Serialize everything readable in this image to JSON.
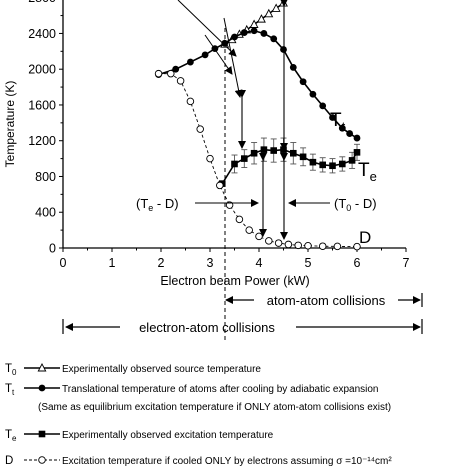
{
  "chart_data": {
    "type": "line",
    "ylabel": "Temperature (K)",
    "xlabel": "Electron beam Power (kW)",
    "xlim": [
      0,
      7
    ],
    "ylim": [
      0,
      2800
    ],
    "x_ticks": [
      "0",
      "1",
      "2",
      "3",
      "4",
      "5",
      "6",
      "7"
    ],
    "y_ticks": [
      "0",
      "400",
      "800",
      "1200",
      "1600",
      "2000",
      "2400"
    ],
    "y_top_partial_label": "2800",
    "grid": false,
    "series": [
      {
        "key": "T0",
        "marker": "open-triangle",
        "line": "solid",
        "x": [
          3.3,
          3.45,
          3.6,
          3.75,
          3.9,
          4.05,
          4.2,
          4.35,
          4.5
        ],
        "y": [
          2280,
          2330,
          2390,
          2440,
          2500,
          2560,
          2620,
          2680,
          2740
        ]
      },
      {
        "key": "Tt",
        "marker": "filled-circle",
        "line": "solid",
        "x": [
          1.95,
          2.3,
          2.6,
          2.9,
          3.1,
          3.3,
          3.5,
          3.7,
          3.9,
          4.1,
          4.3,
          4.5,
          4.7,
          4.9,
          5.1,
          5.3,
          5.5,
          5.7,
          5.85,
          6.0
        ],
        "y": [
          1940,
          2000,
          2080,
          2160,
          2230,
          2290,
          2360,
          2410,
          2430,
          2400,
          2340,
          2220,
          2020,
          1860,
          1720,
          1590,
          1460,
          1340,
          1280,
          1230
        ]
      },
      {
        "key": "Te",
        "marker": "filled-square",
        "line": "solid",
        "x": [
          3.25,
          3.5,
          3.7,
          3.9,
          4.1,
          4.3,
          4.5,
          4.7,
          4.9,
          5.1,
          5.3,
          5.5,
          5.7,
          5.9,
          6.0
        ],
        "y": [
          720,
          940,
          1000,
          1060,
          1100,
          1090,
          1100,
          1060,
          1020,
          960,
          930,
          920,
          940,
          980,
          1070
        ],
        "error": [
          0,
          100,
          100,
          120,
          130,
          130,
          130,
          120,
          100,
          90,
          80,
          80,
          80,
          90,
          90
        ]
      },
      {
        "key": "D",
        "marker": "open-circle",
        "line": "dashed",
        "x": [
          1.95,
          2.2,
          2.4,
          2.6,
          2.8,
          3.0,
          3.2,
          3.4,
          3.6,
          3.8,
          4.0,
          4.2,
          4.4,
          4.6,
          4.8,
          5.0,
          5.3,
          5.6,
          6.0
        ],
        "y": [
          1950,
          1950,
          1870,
          1640,
          1330,
          1000,
          700,
          480,
          320,
          200,
          130,
          80,
          55,
          40,
          30,
          25,
          20,
          18,
          15
        ]
      }
    ],
    "curve_labels": {
      "Tt": {
        "main": "T",
        "sub": "t"
      },
      "Te": {
        "main": "T",
        "sub": "e"
      },
      "D": {
        "main": "D",
        "sub": ""
      }
    },
    "annotations": {
      "te_minus_d": {
        "open": "(T",
        "sub": "e",
        "close": " - D)"
      },
      "t0_minus_d": {
        "open": "(T",
        "sub": "0",
        "close": " - D)"
      },
      "atom_atom": "atom-atom collisions",
      "electron_atom": "electron-atom collisions"
    },
    "legend": [
      {
        "key": "T0",
        "sym_main": "T",
        "sym_sub": "0",
        "text": "Experimentally observed source temperature"
      },
      {
        "key": "Tt",
        "sym_main": "T",
        "sym_sub": "t",
        "text": "Translational temperature of atoms after cooling by adiabatic expansion"
      },
      {
        "key": "Tt_note",
        "sym_main": "",
        "sym_sub": "",
        "text": "(Same as equilibrium excitation temperature if  ONLY atom-atom collisions exist)"
      },
      {
        "key": "Te",
        "sym_main": "T",
        "sym_sub": "e",
        "text": "Experimentally observed excitation temperature"
      },
      {
        "key": "D",
        "sym_main": "D",
        "sym_sub": "",
        "text": "Excitation temperature if cooled ONLY by  electrons assuming σ =10⁻¹⁴cm²"
      }
    ]
  }
}
